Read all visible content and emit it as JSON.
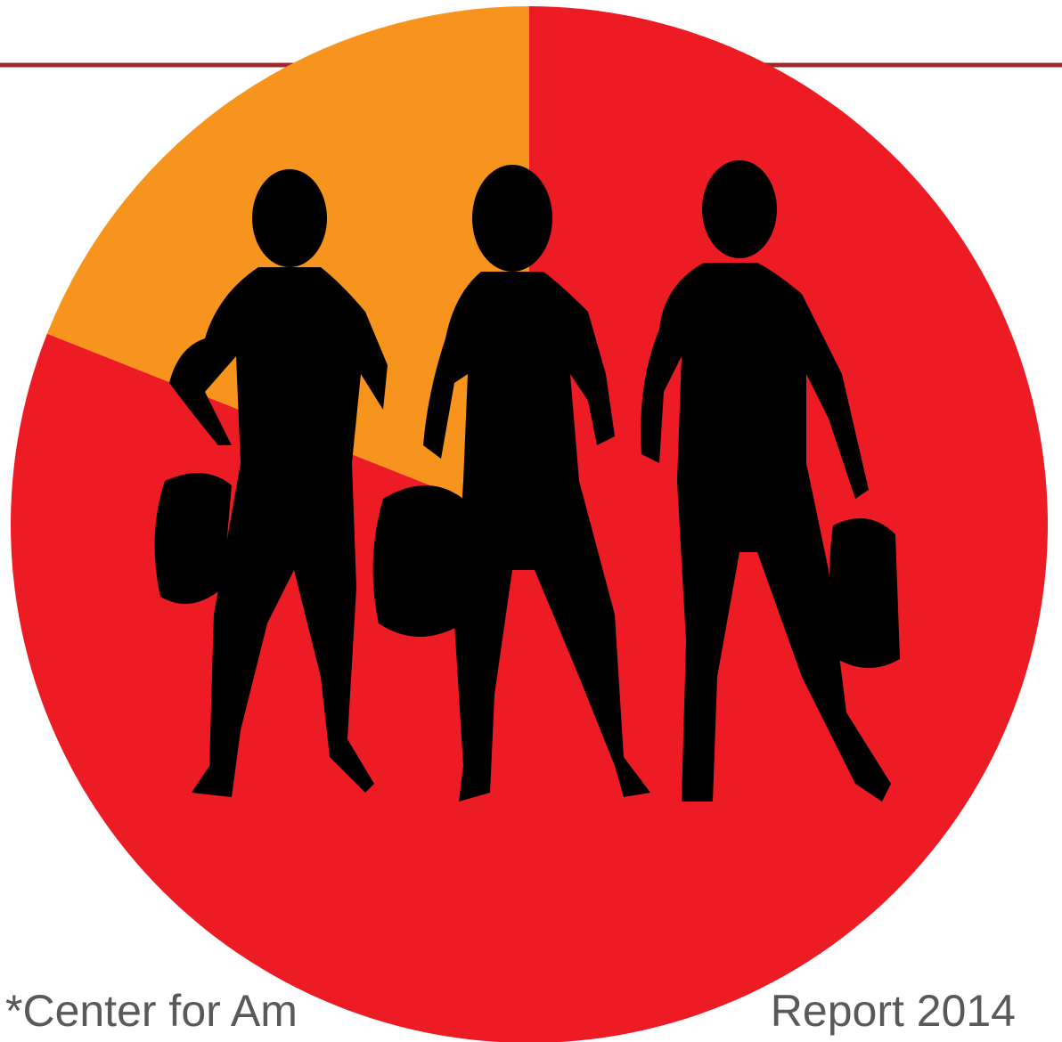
{
  "chart_data": {
    "type": "pie",
    "categories": [
      null,
      null
    ],
    "values": [
      19,
      81
    ],
    "colors": [
      "#f7941d",
      "#ed1c24"
    ],
    "start": "top"
  },
  "footnote": {
    "left": "*Center for Am",
    "right": "Report 2014"
  }
}
